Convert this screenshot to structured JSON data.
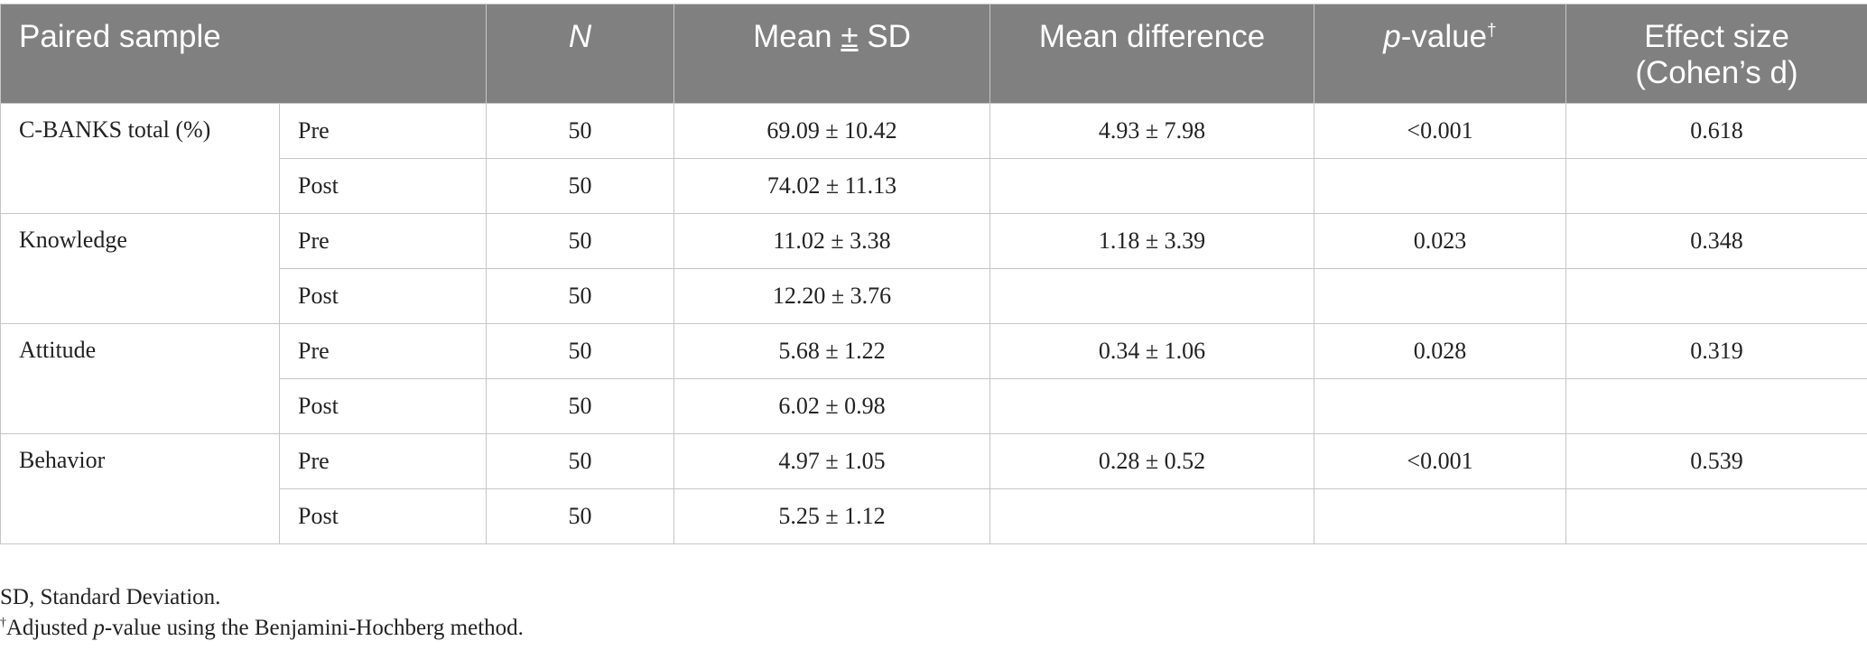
{
  "table": {
    "headers": {
      "paired_sample": "Paired sample",
      "n": "N",
      "mean_label": "Mean",
      "pm_symbol": "±",
      "sd_label": "SD",
      "mean_difference": "Mean difference",
      "p_prefix": "p",
      "p_suffix": "-value",
      "p_mark": "†",
      "effect_size_line1": "Effect size",
      "effect_size_line2": "(Cohen’s d)"
    },
    "groups": [
      {
        "name": "C-BANKS total (%)",
        "rows": [
          {
            "phase": "Pre",
            "n": "50",
            "mean_sd": "69.09 ± 10.42",
            "mean_diff": "4.93 ± 7.98",
            "p_value": "<0.001",
            "effect_size": "0.618"
          },
          {
            "phase": "Post",
            "n": "50",
            "mean_sd": "74.02 ± 11.13"
          }
        ]
      },
      {
        "name": "Knowledge",
        "rows": [
          {
            "phase": "Pre",
            "n": "50",
            "mean_sd": "11.02 ± 3.38",
            "mean_diff": "1.18 ± 3.39",
            "p_value": "0.023",
            "effect_size": "0.348"
          },
          {
            "phase": "Post",
            "n": "50",
            "mean_sd": "12.20 ± 3.76"
          }
        ]
      },
      {
        "name": "Attitude",
        "rows": [
          {
            "phase": "Pre",
            "n": "50",
            "mean_sd": "5.68 ± 1.22",
            "mean_diff": "0.34 ± 1.06",
            "p_value": "0.028",
            "effect_size": "0.319"
          },
          {
            "phase": "Post",
            "n": "50",
            "mean_sd": "6.02 ± 0.98"
          }
        ]
      },
      {
        "name": "Behavior",
        "rows": [
          {
            "phase": "Pre",
            "n": "50",
            "mean_sd": "4.97 ± 1.05",
            "mean_diff": "0.28 ± 0.52",
            "p_value": "<0.001",
            "effect_size": "0.539"
          },
          {
            "phase": "Post",
            "n": "50",
            "mean_sd": "5.25 ± 1.12"
          }
        ]
      }
    ]
  },
  "footnotes": {
    "sd_note": "SD, Standard Deviation.",
    "adj_mark": "†",
    "adj_prefix": "Adjusted ",
    "adj_p": "p",
    "adj_suffix": "-value using the Benjamini-Hochberg method."
  }
}
